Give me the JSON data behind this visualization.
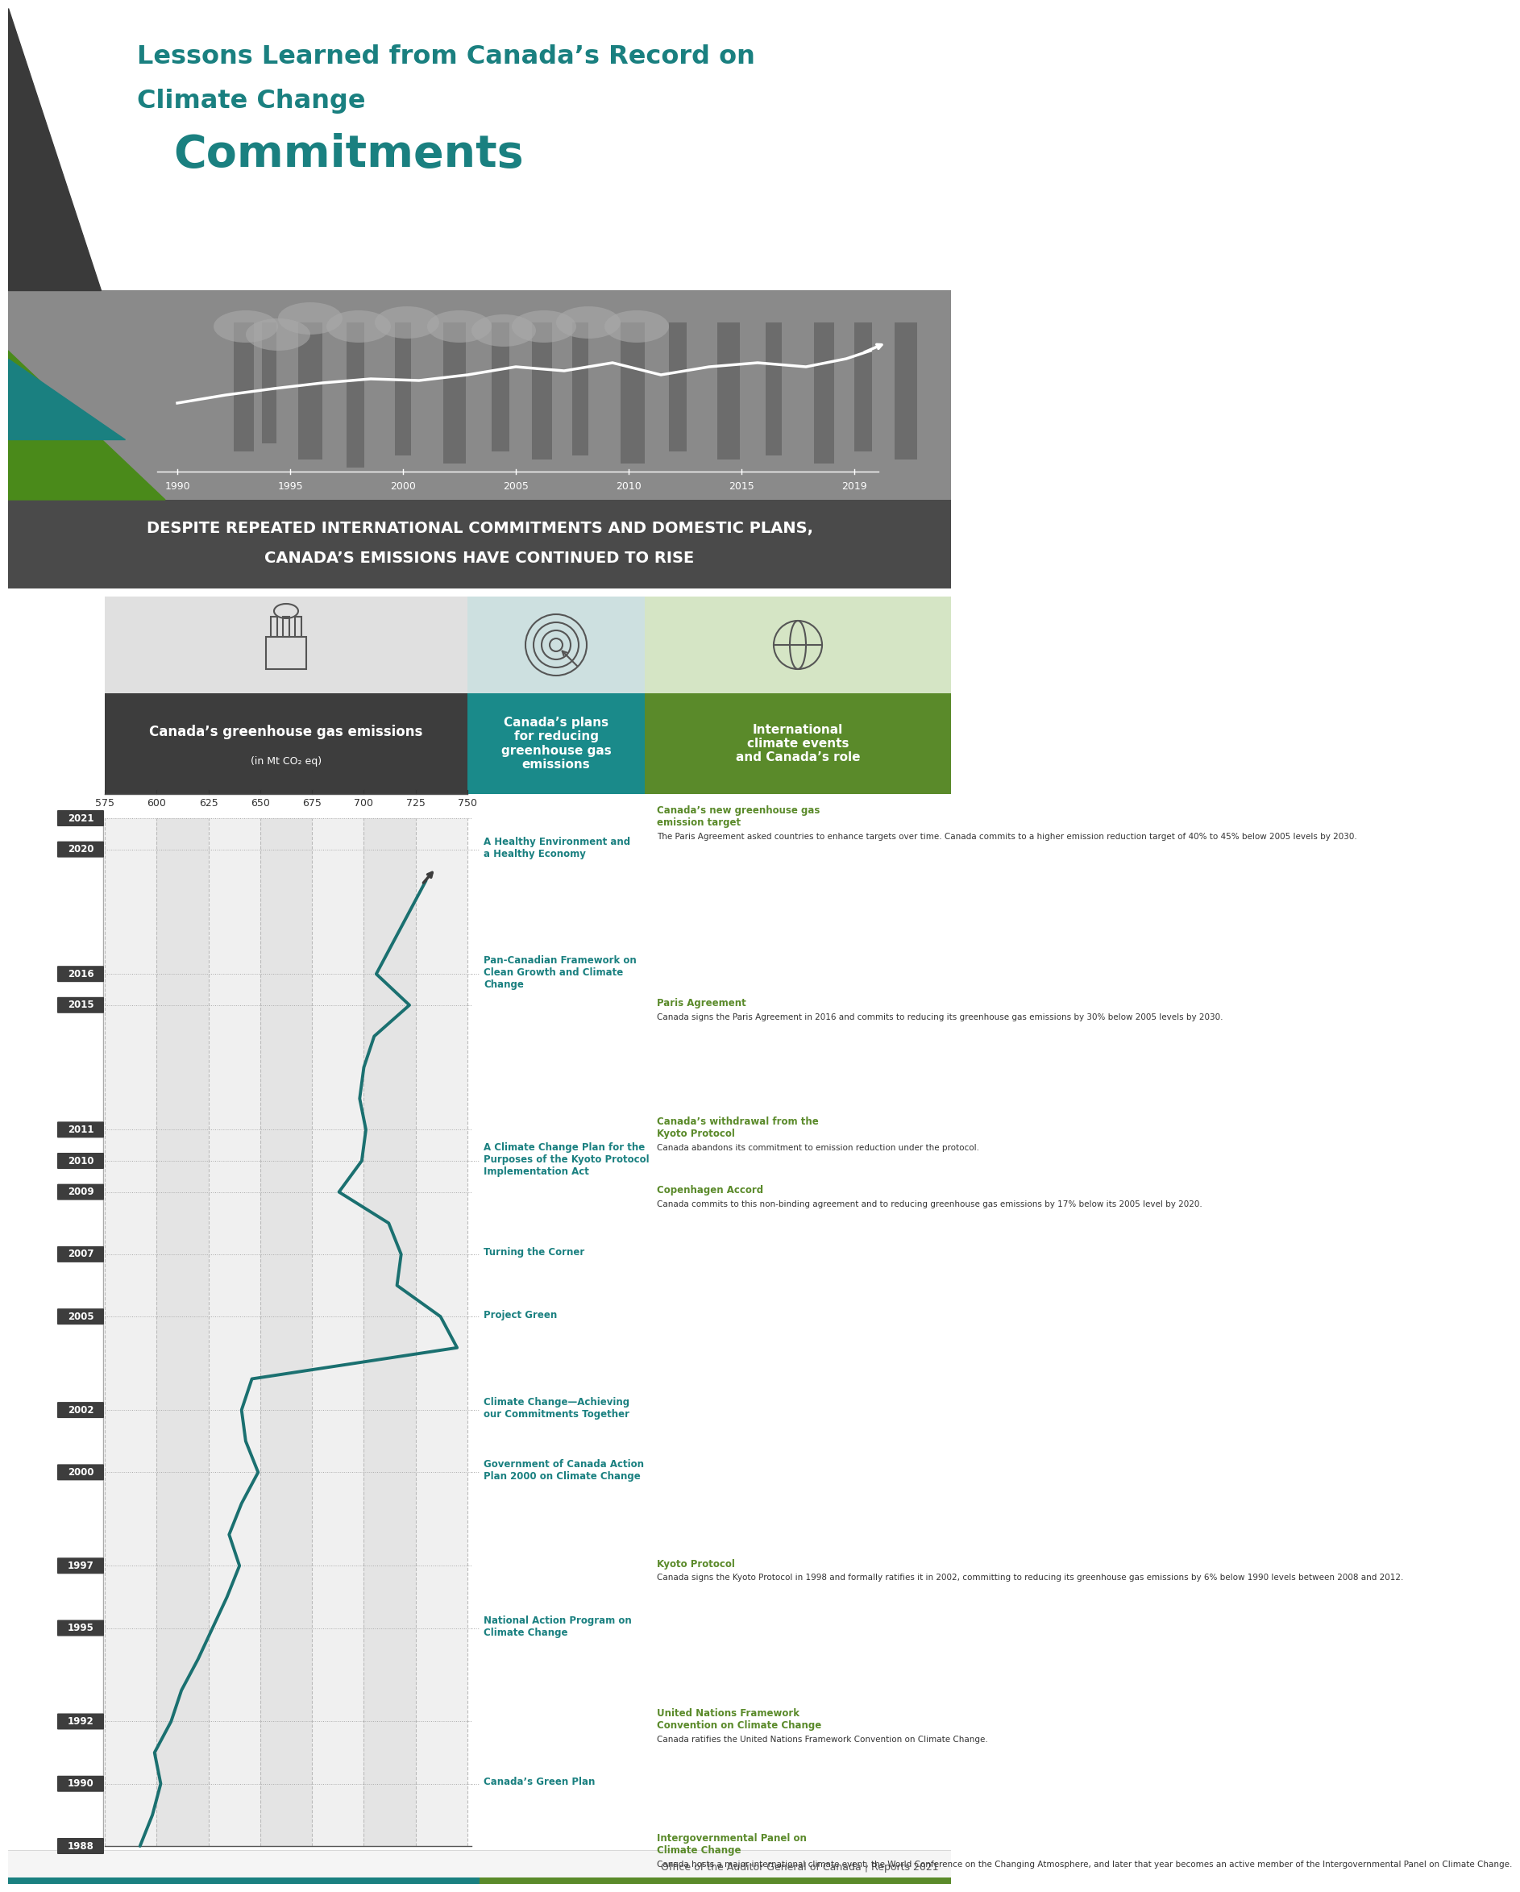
{
  "title_line1": "Lessons Learned from Canada’s Record on",
  "title_line2": "Climate Change",
  "title_bold": "Commitments",
  "subtitle_line1": "DESPITE REPEATED INTERNATIONAL COMMITMENTS AND DOMESTIC PLANS,",
  "subtitle_line2": "CANADA’S EMISSIONS HAVE CONTINUED TO RISE",
  "col1_header": "Canada’s greenhouse gas emissions",
  "col1_subheader": "(in Mt CO₂ eq)",
  "col2_header": "Canada’s plans\nfor reducing\ngreenhouse gas\nemissions",
  "col3_header": "International\nclimate events\nand Canada’s role",
  "col1_bg": "#3d3d3d",
  "col2_bg": "#1a8a8a",
  "col3_bg": "#5a8a2a",
  "teal_color": "#1a8080",
  "green_color": "#5a8a2a",
  "dark_color": "#3d3d3d",
  "title_color": "#1a8080",
  "line_color": "#1a7070",
  "arrow_color": "#3d3d3d",
  "x_axis_ticks": [
    575,
    600,
    625,
    650,
    675,
    700,
    725,
    750
  ],
  "x_min": 575,
  "x_max": 750,
  "year_min": 1988,
  "year_max": 2021,
  "year_labels": [
    2021,
    2020,
    2016,
    2015,
    2011,
    2010,
    2009,
    2007,
    2005,
    2002,
    2000,
    1997,
    1995,
    1992,
    1990,
    1988
  ],
  "emissions_data": {
    "1988": 592,
    "1989": 598,
    "1990": 602,
    "1991": 599,
    "1992": 607,
    "1993": 612,
    "1994": 620,
    "1995": 627,
    "1996": 634,
    "1997": 640,
    "1998": 635,
    "1999": 641,
    "2000": 649,
    "2001": 643,
    "2002": 641,
    "2003": 646,
    "2004": 745,
    "2005": 737,
    "2006": 716,
    "2007": 718,
    "2008": 712,
    "2009": 688,
    "2010": 699,
    "2011": 701,
    "2012": 698,
    "2013": 700,
    "2014": 705,
    "2015": 722,
    "2016": 706,
    "2017": 714,
    "2018": 722,
    "2019": 730
  },
  "plans": [
    {
      "year": 1990,
      "text": "Canada’s Green Plan"
    },
    {
      "year": 1995,
      "text": "National Action Program on\nClimate Change"
    },
    {
      "year": 2000,
      "text": "Government of Canada Action\nPlan 2000 on Climate Change"
    },
    {
      "year": 2002,
      "text": "Climate Change—Achieving\nour Commitments Together"
    },
    {
      "year": 2005,
      "text": "Project Green"
    },
    {
      "year": 2007,
      "text": "Turning the Corner"
    },
    {
      "year": 2010,
      "text": "A Climate Change Plan for the\nPurposes of the ⁠Kyoto Protocol\nImplementation Act"
    },
    {
      "year": 2016,
      "text": "Pan-Canadian Framework on\nClean Growth and Climate\nChange"
    },
    {
      "year": 2020,
      "text": "A Healthy Environment and\na Healthy Economy"
    }
  ],
  "events": [
    {
      "year": 1988,
      "title": "Intergovernmental Panel on\nClimate Change",
      "body": "Canada hosts a major international climate event, the World Conference on the Changing Atmosphere, and later that year becomes an active member of the Intergovernmental Panel on Climate Change."
    },
    {
      "year": 1992,
      "title": "United Nations Framework\nConvention on Climate Change",
      "body": "Canada ratifies the United Nations Framework Convention on Climate Change."
    },
    {
      "year": 1997,
      "title": "Kyoto Protocol",
      "body": "Canada signs the Kyoto Protocol in 1998 and formally ratifies it in 2002, committing to reducing its greenhouse gas emissions by 6% below 1990 levels between 2008 and 2012."
    },
    {
      "year": 2009,
      "title": "Copenhagen Accord",
      "body": "Canada commits to this non-binding agreement and to reducing greenhouse gas emissions by 17% below its 2005 level by 2020."
    },
    {
      "year": 2011,
      "title": "Canada’s withdrawal from the\nKyoto Protocol",
      "body": "Canada abandons its commitment to emission reduction under the protocol."
    },
    {
      "year": 2015,
      "title": "Paris Agreement",
      "body": "Canada signs the Paris Agreement in 2016 and commits to reducing its greenhouse gas emissions by 30% below 2005 levels by 2030."
    },
    {
      "year": 2021,
      "title": "Canada’s new greenhouse gas\nemission target",
      "body": "The Paris Agreement asked countries to enhance targets over time. Canada commits to a higher emission reduction target of 40% to 45% below 2005 levels by 2030."
    }
  ],
  "footer_text": "Office of the Auditor General of Canada | Reports 2021",
  "section_bg1": "#e8e8e8",
  "section_bg2": "#daeaea",
  "section_bg3": "#dce8d0",
  "icon_bg1": "#e0e0e0",
  "icon_bg2": "#cde0e0",
  "icon_bg3": "#d5e5c5"
}
